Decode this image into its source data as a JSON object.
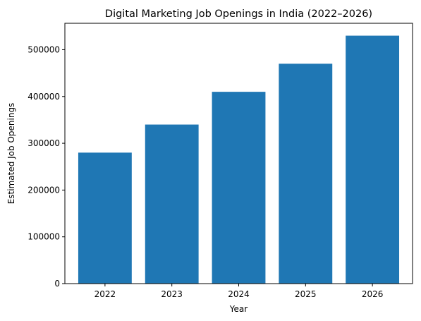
{
  "chart_data": {
    "type": "bar",
    "title": "Digital Marketing Job Openings in India (2022–2026)",
    "xlabel": "Year",
    "ylabel": "Estimated Job Openings",
    "categories": [
      "2022",
      "2023",
      "2024",
      "2025",
      "2026"
    ],
    "values": [
      280000,
      340000,
      410000,
      470000,
      530000
    ],
    "ylim": [
      0,
      556500
    ],
    "yticks": [
      0,
      100000,
      200000,
      300000,
      400000,
      500000
    ],
    "ytick_labels": [
      "0",
      "100000",
      "200000",
      "300000",
      "400000",
      "500000"
    ],
    "bar_color": "#1f77b4",
    "grid": false,
    "legend": "none"
  }
}
